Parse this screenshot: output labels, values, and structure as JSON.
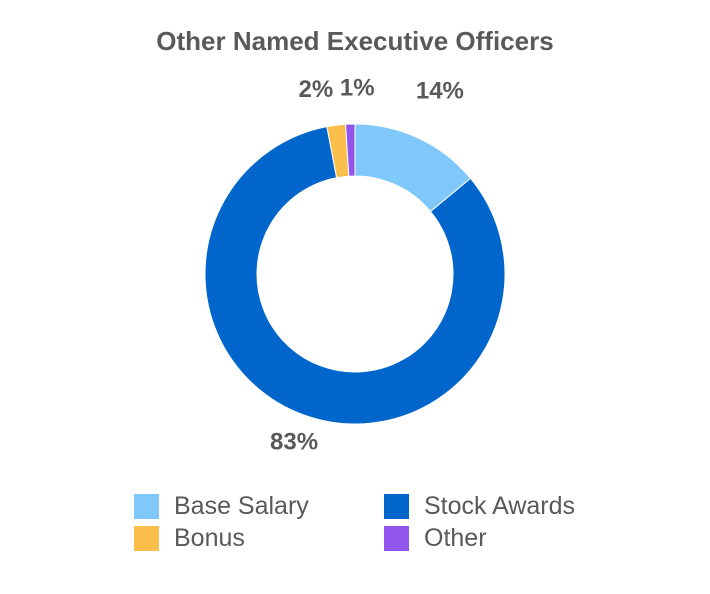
{
  "chart_data": {
    "type": "pie",
    "variant": "donut",
    "title": "Other Named Executive Officers",
    "slices": [
      {
        "label": "Base Salary",
        "value": 14,
        "display": "14%",
        "color": "#81C8FA"
      },
      {
        "label": "Stock Awards",
        "value": 83,
        "display": "83%",
        "color": "#0066CC"
      },
      {
        "label": "Bonus",
        "value": 2,
        "display": "2%",
        "color": "#FABE4B"
      },
      {
        "label": "Other",
        "value": 1,
        "display": "1%",
        "color": "#9154EC"
      }
    ],
    "legend_position": "bottom",
    "legend": [
      {
        "label": "Base Salary",
        "color": "#81C8FA"
      },
      {
        "label": "Stock Awards",
        "color": "#0066CC"
      },
      {
        "label": "Bonus",
        "color": "#FABE4B"
      },
      {
        "label": "Other",
        "color": "#9154EC"
      }
    ]
  }
}
